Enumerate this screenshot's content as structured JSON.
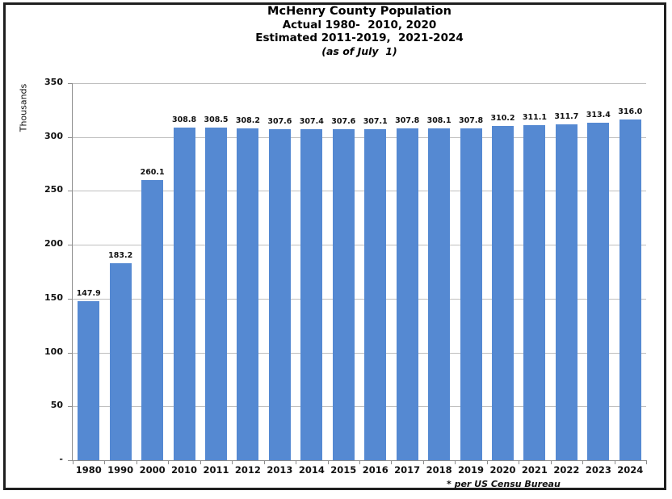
{
  "chart_data": {
    "type": "bar",
    "title_lines": [
      "McHenry County Population",
      "Actual 1980-  2010, 2020",
      "Estimated 2011-2019,  2021-2024",
      "(as of July  1)"
    ],
    "ylabel": "Thousands",
    "xlabel": "",
    "categories": [
      "1980",
      "1990",
      "2000",
      "2010",
      "2011",
      "2012",
      "2013",
      "2014",
      "2015",
      "2016",
      "2017",
      "2018",
      "2019",
      "2020",
      "2021",
      "2022",
      "2023",
      "2024"
    ],
    "values": [
      147.9,
      183.2,
      260.1,
      308.8,
      308.5,
      308.2,
      307.6,
      307.4,
      307.6,
      307.1,
      307.8,
      308.1,
      307.8,
      310.2,
      311.1,
      311.7,
      313.4,
      316.0
    ],
    "bar_labels": [
      "147.9",
      "183.2",
      "260.1",
      "308.8",
      "308.5",
      "308.2",
      "307.6",
      "307.4",
      "307.6",
      "307.1",
      "307.8",
      "308.1",
      "307.8",
      "310.2",
      "311.1",
      "311.7",
      "313.4",
      "316.0"
    ],
    "y_ticks": [
      {
        "value": 350,
        "label": "350"
      },
      {
        "value": 300,
        "label": "300"
      },
      {
        "value": 250,
        "label": "250"
      },
      {
        "value": 200,
        "label": "200"
      },
      {
        "value": 150,
        "label": "150"
      },
      {
        "value": 100,
        "label": "100"
      },
      {
        "value": 50,
        "label": "50"
      },
      {
        "value": 0,
        "label": "-"
      }
    ],
    "ylim": [
      0,
      350
    ],
    "grid": true,
    "legend": false,
    "footnote": "* per US Censu Bureau",
    "colors": {
      "bar": "#5589D2",
      "gridline": "#bfbfbf",
      "axis": "#8c8c8c",
      "text": "#111111",
      "frame_border": "#1f1f1f"
    }
  }
}
